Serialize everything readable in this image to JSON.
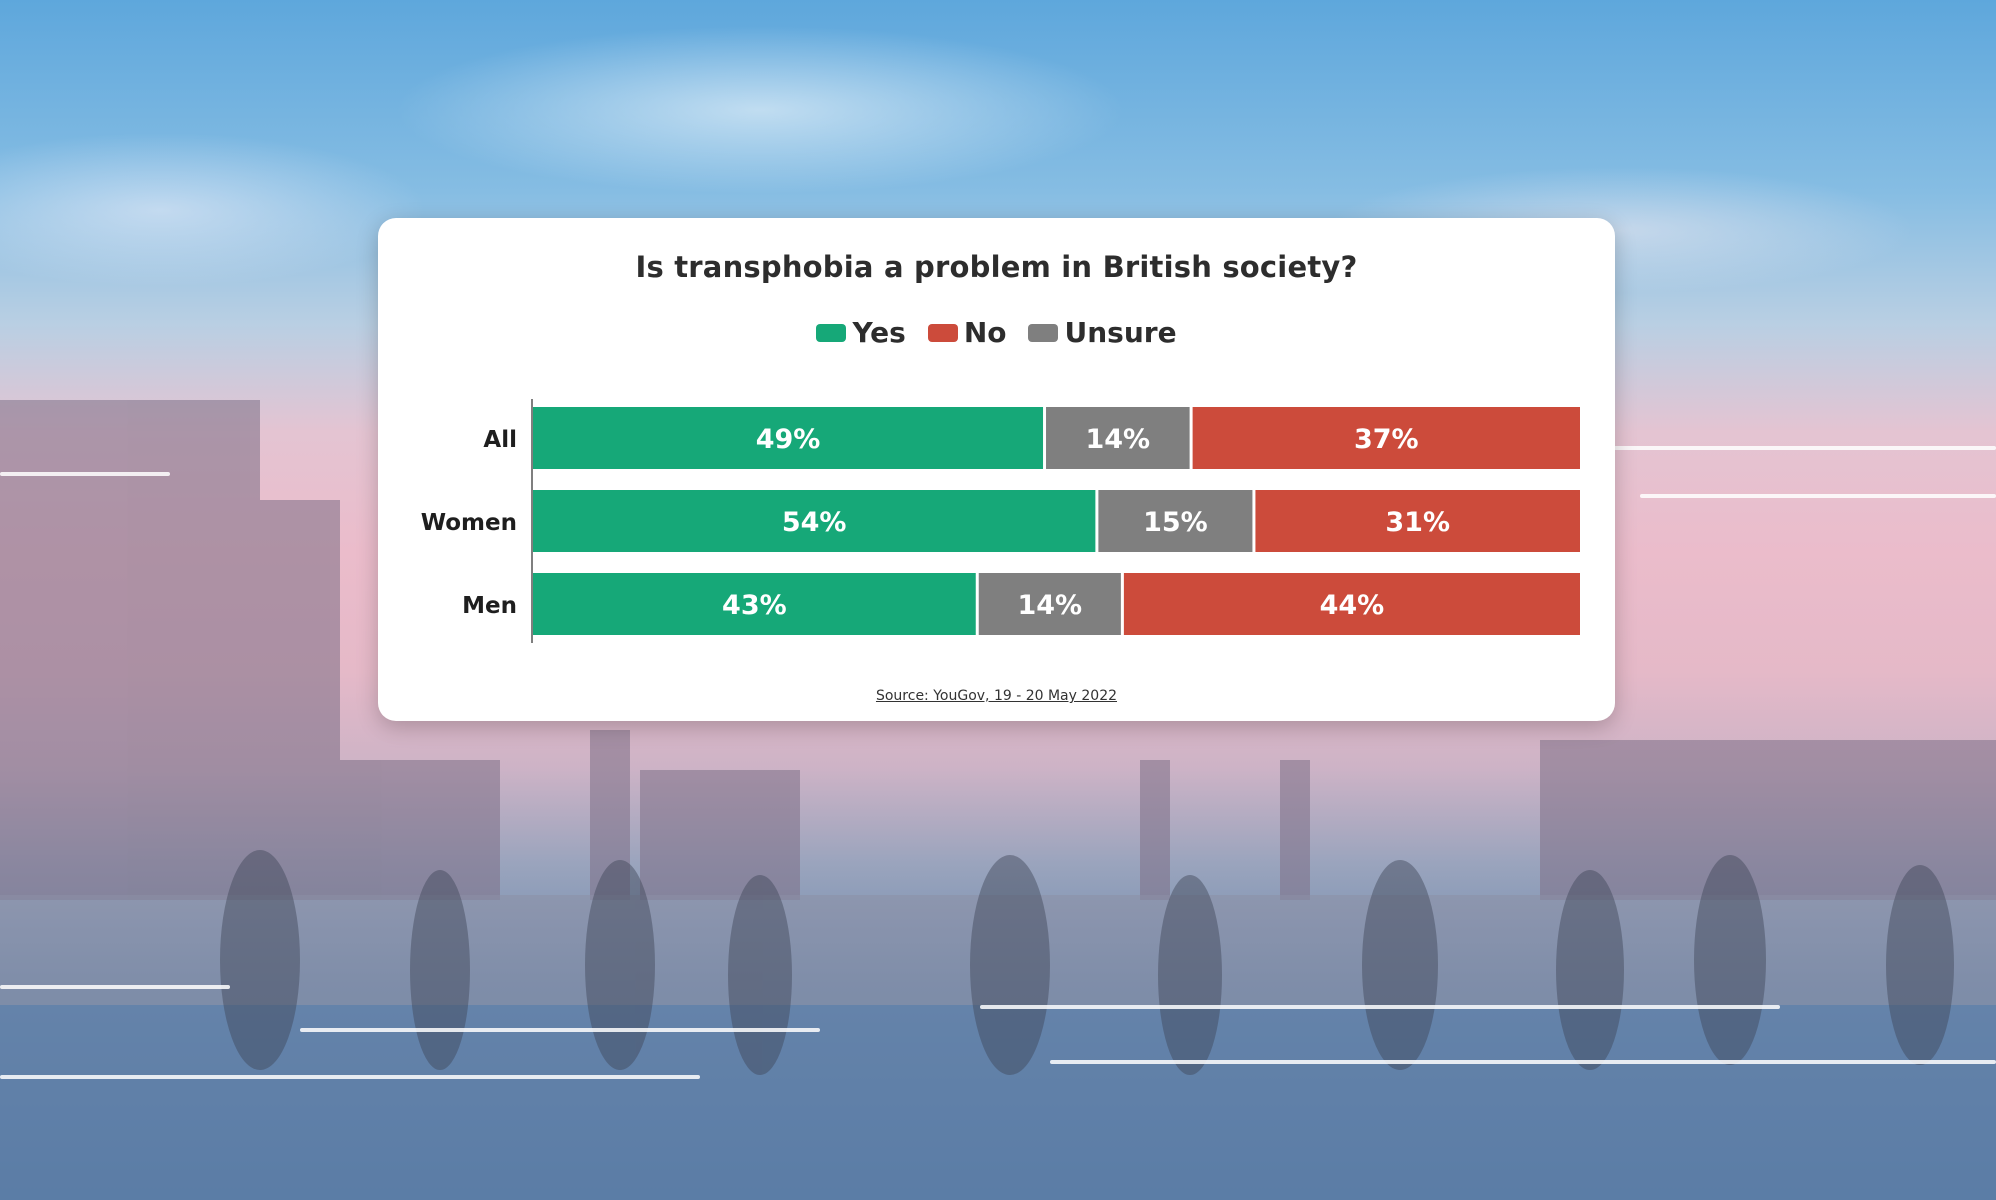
{
  "chart_data": {
    "type": "bar",
    "orientation": "horizontal",
    "stacked": true,
    "title": "Is transphobia a problem in British society?",
    "categories": [
      "All",
      "Women",
      "Men"
    ],
    "series": [
      {
        "name": "Yes",
        "values": [
          49,
          54,
          43
        ],
        "color": "#16a878"
      },
      {
        "name": "Unsure",
        "values": [
          14,
          15,
          14
        ],
        "color": "#7f7f7f"
      },
      {
        "name": "No",
        "values": [
          37,
          31,
          44
        ],
        "color": "#cc4b3b"
      }
    ],
    "legend": [
      {
        "name": "Yes",
        "color": "#16a878"
      },
      {
        "name": "No",
        "color": "#cc4b3b"
      },
      {
        "name": "Unsure",
        "color": "#7f7f7f"
      }
    ],
    "value_suffix": "%",
    "xlim": [
      0,
      100
    ],
    "legend_position": "top-center",
    "grid": false
  },
  "source": "Source: YouGov, 19 - 20 May 2022"
}
